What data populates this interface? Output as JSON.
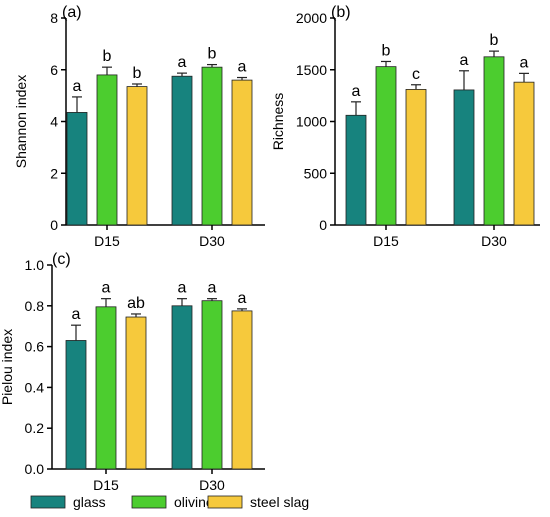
{
  "chart_data": [
    {
      "type": "bar",
      "panel_label": "(a)",
      "ylabel": "Shannon index",
      "ylim": [
        0,
        8
      ],
      "yticks": [
        "0",
        "2",
        "4",
        "6",
        "8"
      ],
      "ytick_values": [
        0,
        2,
        4,
        6,
        8
      ],
      "categories": [
        "D15",
        "D30"
      ],
      "series": [
        {
          "name": "glass",
          "values": [
            4.35,
            5.75
          ],
          "errors": [
            0.6,
            0.12
          ],
          "letters": [
            "a",
            "a"
          ]
        },
        {
          "name": "olivine",
          "values": [
            5.8,
            6.1
          ],
          "errors": [
            0.3,
            0.1
          ],
          "letters": [
            "b",
            "b"
          ]
        },
        {
          "name": "steel slag",
          "values": [
            5.35,
            5.6
          ],
          "errors": [
            0.1,
            0.1
          ],
          "letters": [
            "b",
            "a"
          ]
        }
      ]
    },
    {
      "type": "bar",
      "panel_label": "(b)",
      "ylabel": "Richness",
      "ylim": [
        0,
        2000
      ],
      "yticks": [
        "0",
        "500",
        "1000",
        "1500",
        "2000"
      ],
      "ytick_values": [
        0,
        500,
        1000,
        1500,
        2000
      ],
      "categories": [
        "D15",
        "D30"
      ],
      "series": [
        {
          "name": "glass",
          "values": [
            1060,
            1305
          ],
          "errors": [
            130,
            185
          ],
          "letters": [
            "a",
            "a"
          ]
        },
        {
          "name": "olivine",
          "values": [
            1530,
            1625
          ],
          "errors": [
            50,
            55
          ],
          "letters": [
            "b",
            "b"
          ]
        },
        {
          "name": "steel slag",
          "values": [
            1310,
            1380
          ],
          "errors": [
            45,
            85
          ],
          "letters": [
            "c",
            "a"
          ]
        }
      ]
    },
    {
      "type": "bar",
      "panel_label": "(c)",
      "ylabel": "Pielou index",
      "ylim": [
        0,
        1.0
      ],
      "yticks": [
        "0.0",
        "0.2",
        "0.4",
        "0.6",
        "0.8",
        "1.0"
      ],
      "ytick_values": [
        0,
        0.2,
        0.4,
        0.6,
        0.8,
        1.0
      ],
      "categories": [
        "D15",
        "D30"
      ],
      "series": [
        {
          "name": "glass",
          "values": [
            0.63,
            0.8
          ],
          "errors": [
            0.075,
            0.035
          ],
          "letters": [
            "a",
            "a"
          ]
        },
        {
          "name": "olivine",
          "values": [
            0.795,
            0.825
          ],
          "errors": [
            0.04,
            0.01
          ],
          "letters": [
            "a",
            "a"
          ]
        },
        {
          "name": "steel slag",
          "values": [
            0.745,
            0.775
          ],
          "errors": [
            0.015,
            0.01
          ],
          "letters": [
            "ab",
            "a"
          ]
        }
      ]
    }
  ],
  "legend": [
    {
      "name": "glass",
      "color": "#17837e"
    },
    {
      "name": "olivine",
      "color": "#4ccd2f"
    },
    {
      "name": "steel slag",
      "color": "#f6c93c"
    }
  ],
  "colors": {
    "glass": "#17837e",
    "olivine": "#4ccd2f",
    "steel_slag": "#f6c93c",
    "axis": "#000000"
  }
}
